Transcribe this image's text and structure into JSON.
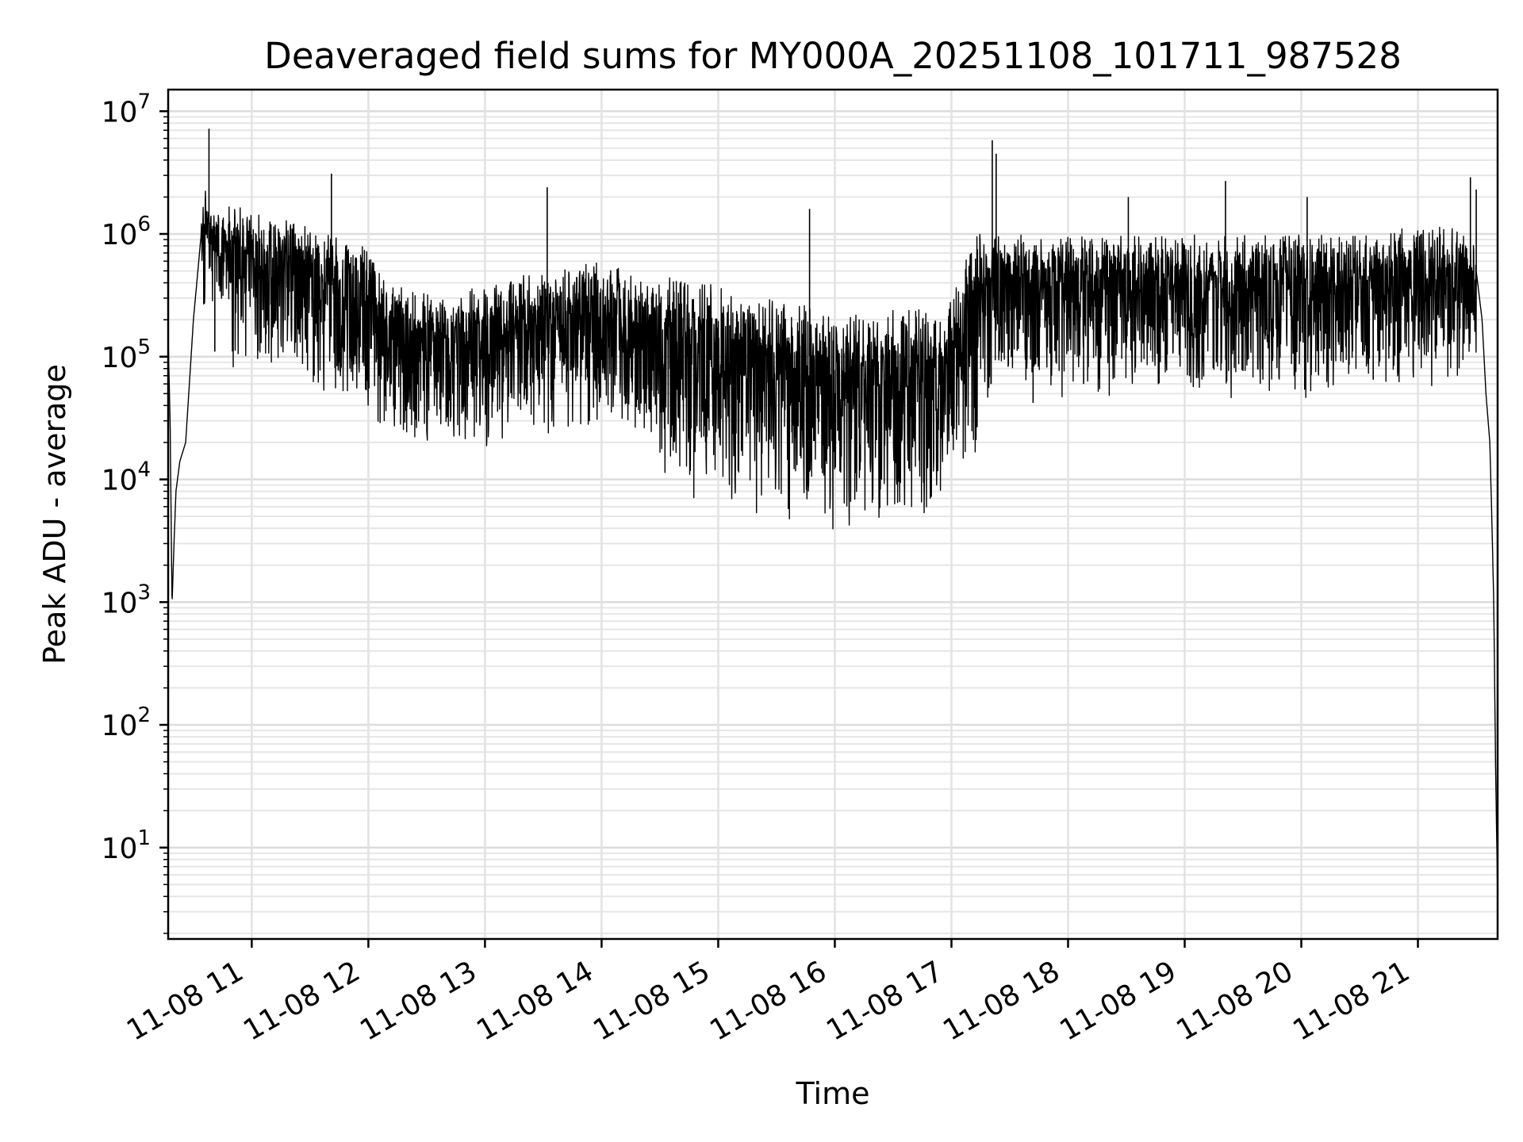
{
  "chart_data": {
    "type": "line",
    "title": "Deaveraged field sums for MY000A_20251108_101711_987528",
    "xlabel": "Time",
    "ylabel": "Peak ADU - average",
    "y_scale": "log",
    "ylim": [
      1.8,
      15000000
    ],
    "xlim": [
      "2025-11-08 10:17",
      "2025-11-08 21:41"
    ],
    "grid": true,
    "line_color": "#000000",
    "x_ticks": [
      {
        "value": "2025-11-08 11:00",
        "label": "11-08 11"
      },
      {
        "value": "2025-11-08 12:00",
        "label": "11-08 12"
      },
      {
        "value": "2025-11-08 13:00",
        "label": "11-08 13"
      },
      {
        "value": "2025-11-08 14:00",
        "label": "11-08 14"
      },
      {
        "value": "2025-11-08 15:00",
        "label": "11-08 15"
      },
      {
        "value": "2025-11-08 16:00",
        "label": "11-08 16"
      },
      {
        "value": "2025-11-08 17:00",
        "label": "11-08 17"
      },
      {
        "value": "2025-11-08 18:00",
        "label": "11-08 18"
      },
      {
        "value": "2025-11-08 19:00",
        "label": "11-08 19"
      },
      {
        "value": "2025-11-08 20:00",
        "label": "11-08 20"
      },
      {
        "value": "2025-11-08 21:00",
        "label": "11-08 21"
      }
    ],
    "y_ticks": [
      {
        "value": 10,
        "base": "10",
        "exp": "1"
      },
      {
        "value": 100,
        "base": "10",
        "exp": "2"
      },
      {
        "value": 1000,
        "base": "10",
        "exp": "3"
      },
      {
        "value": 10000,
        "base": "10",
        "exp": "4"
      },
      {
        "value": 100000,
        "base": "10",
        "exp": "5"
      },
      {
        "value": 1000000,
        "base": "10",
        "exp": "6"
      },
      {
        "value": 10000000,
        "base": "10",
        "exp": "7"
      }
    ],
    "series": [
      {
        "x": [
          "2025-11-08 10:17",
          "2025-11-08 10:18",
          "2025-11-08 10:19",
          "2025-11-08 10:20",
          "2025-11-08 10:21",
          "2025-11-08 10:23",
          "2025-11-08 10:26",
          "2025-11-08 10:30",
          "2025-11-08 10:34",
          "2025-11-08 10:36",
          "2025-11-08 10:38",
          "2025-11-08 10:40",
          "2025-11-08 10:42",
          "2025-11-08 10:45",
          "2025-11-08 10:50",
          "2025-11-08 11:00",
          "2025-11-08 11:20",
          "2025-11-08 11:40",
          "2025-11-08 12:00",
          "2025-11-08 12:10",
          "2025-11-08 12:30",
          "2025-11-08 13:00",
          "2025-11-08 13:30",
          "2025-11-08 14:00",
          "2025-11-08 14:30",
          "2025-11-08 15:00",
          "2025-11-08 15:30",
          "2025-11-08 16:00",
          "2025-11-08 16:30",
          "2025-11-08 16:55",
          "2025-11-08 17:10",
          "2025-11-08 17:20",
          "2025-11-08 17:40",
          "2025-11-08 18:00",
          "2025-11-08 18:30",
          "2025-11-08 19:00",
          "2025-11-08 19:30",
          "2025-11-08 20:00",
          "2025-11-08 20:30",
          "2025-11-08 21:00",
          "2025-11-08 21:20",
          "2025-11-08 21:30",
          "2025-11-08 21:33",
          "2025-11-08 21:35",
          "2025-11-08 21:37",
          "2025-11-08 21:38",
          "2025-11-08 21:39",
          "2025-11-08 21:40",
          "2025-11-08 21:41"
        ],
        "y": [
          140000,
          30000,
          950,
          3000,
          8000,
          14000,
          20000,
          200000,
          1000000,
          1800000,
          1200000,
          1200000,
          1100000,
          1000000,
          900000,
          800000,
          700000,
          500000,
          400000,
          200000,
          170000,
          200000,
          250000,
          300000,
          200000,
          150000,
          120000,
          90000,
          100000,
          100000,
          400000,
          500000,
          500000,
          500000,
          500000,
          500000,
          500000,
          500000,
          500000,
          600000,
          600000,
          500000,
          200000,
          50000,
          20000,
          5000,
          1000,
          40,
          4
        ]
      }
    ],
    "spikes": [
      {
        "x": "2025-11-08 10:38",
        "y": 7200000
      },
      {
        "x": "2025-11-08 11:41",
        "y": 3100000
      },
      {
        "x": "2025-11-08 13:32",
        "y": 2400000
      },
      {
        "x": "2025-11-08 15:47",
        "y": 1600000
      },
      {
        "x": "2025-11-08 17:21",
        "y": 5800000
      },
      {
        "x": "2025-11-08 17:23",
        "y": 4500000
      },
      {
        "x": "2025-11-08 18:31",
        "y": 2000000
      },
      {
        "x": "2025-11-08 19:21",
        "y": 2700000
      },
      {
        "x": "2025-11-08 20:03",
        "y": 2000000
      },
      {
        "x": "2025-11-08 21:27",
        "y": 2900000
      },
      {
        "x": "2025-11-08 21:30",
        "y": 2300000
      }
    ],
    "dips": [
      {
        "x": "2025-11-08 10:41",
        "y": 110000
      },
      {
        "x": "2025-11-08 12:04",
        "y": 90000
      },
      {
        "x": "2025-11-08 15:11",
        "y": 42000
      },
      {
        "x": "2025-11-08 15:20",
        "y": 29000
      },
      {
        "x": "2025-11-08 16:28",
        "y": 31000
      },
      {
        "x": "2025-11-08 16:59",
        "y": 34000
      },
      {
        "x": "2025-11-08 17:42",
        "y": 42000
      },
      {
        "x": "2025-11-08 18:08",
        "y": 60000
      },
      {
        "x": "2025-11-08 20:37",
        "y": 65000
      }
    ]
  }
}
